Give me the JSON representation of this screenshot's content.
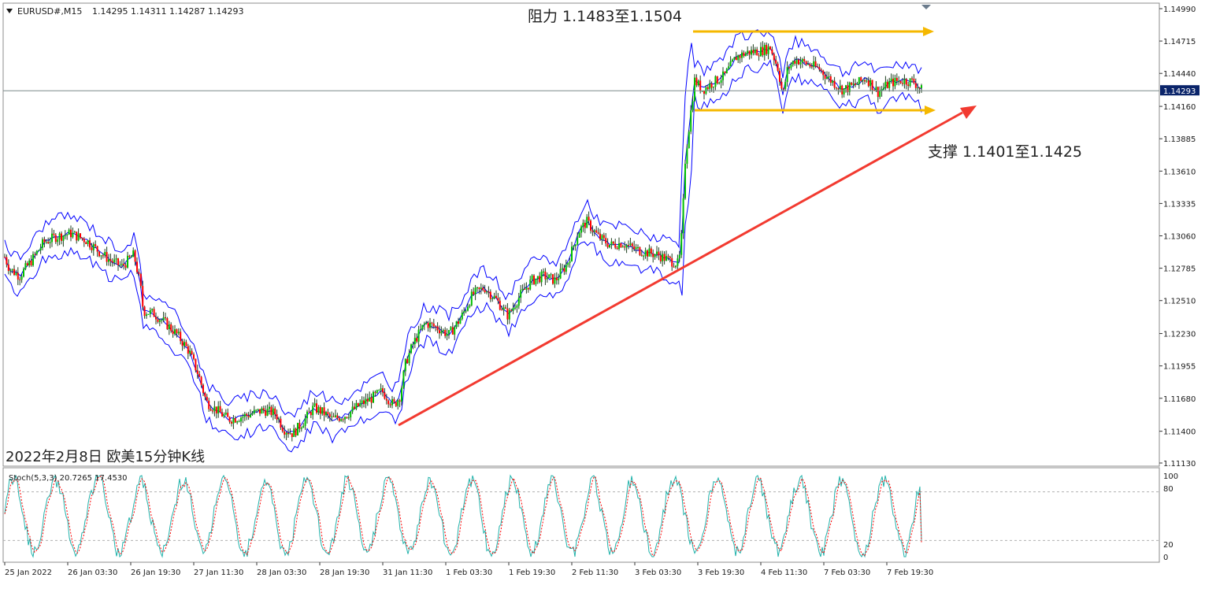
{
  "header": {
    "symbol_label": "EURUSD#,M15",
    "ohlc_label": "1.14295 1.14311 1.14287 1.14293"
  },
  "annotations": {
    "resistance": "阻力 1.1483至1.1504",
    "support": "支撑 1.1401至1.1425",
    "caption": "2022年2月8日 欧美15分钟K线"
  },
  "stoch": {
    "label": "Stoch(5,3,3) 20.7265 17.4530",
    "levels": [
      "100",
      "80",
      "20",
      "0"
    ]
  },
  "colors": {
    "band": "#0000ff",
    "bull_candle": "#00c000",
    "bear_candle": "#ff0000",
    "wick": "#1f3f1f",
    "trend_arrow": "#f23a30",
    "range_arrow": "#f5b800",
    "stoch_main": "#20b2aa",
    "stoch_signal": "#ff0000",
    "current_price_bg": "#0a246a"
  },
  "chart_data": [
    {
      "type": "candlestick",
      "title": "EURUSD#,M15",
      "current_price": 1.14293,
      "current_price_label": "1.14293",
      "y_ticks": [
        "1.14990",
        "1.14715",
        "1.14440",
        "1.14160",
        "1.13885",
        "1.13610",
        "1.13335",
        "1.13060",
        "1.12785",
        "1.12510",
        "1.12230",
        "1.11955",
        "1.11680",
        "1.11400",
        "1.11130"
      ],
      "y_tick_values": [
        1.1499,
        1.14715,
        1.1444,
        1.1416,
        1.13885,
        1.1361,
        1.13335,
        1.1306,
        1.12785,
        1.1251,
        1.1223,
        1.11955,
        1.1168,
        1.114,
        1.1113
      ],
      "ylim": [
        1.1111,
        1.1501
      ],
      "x_ticks": [
        "25 Jan 2022",
        "26 Jan 03:30",
        "26 Jan 19:30",
        "27 Jan 11:30",
        "28 Jan 03:30",
        "28 Jan 19:30",
        "31 Jan 11:30",
        "1 Feb 03:30",
        "1 Feb 19:30",
        "2 Feb 11:30",
        "3 Feb 03:30",
        "3 Feb 19:30",
        "4 Feb 11:30",
        "7 Feb 03:30",
        "7 Feb 19:30"
      ],
      "close_path": [
        [
          0,
          1.1298
        ],
        [
          12,
          1.1278
        ],
        [
          25,
          1.1272
        ],
        [
          40,
          1.1285
        ],
        [
          55,
          1.13
        ],
        [
          70,
          1.1305
        ],
        [
          90,
          1.1308
        ],
        [
          110,
          1.1302
        ],
        [
          125,
          1.1293
        ],
        [
          140,
          1.1285
        ],
        [
          155,
          1.128
        ],
        [
          170,
          1.129
        ],
        [
          178,
          1.1265
        ],
        [
          182,
          1.1242
        ],
        [
          195,
          1.124
        ],
        [
          210,
          1.1232
        ],
        [
          225,
          1.1222
        ],
        [
          240,
          1.1208
        ],
        [
          252,
          1.1188
        ],
        [
          262,
          1.1165
        ],
        [
          275,
          1.1158
        ],
        [
          290,
          1.115
        ],
        [
          305,
          1.1152
        ],
        [
          320,
          1.1155
        ],
        [
          335,
          1.1158
        ],
        [
          350,
          1.1155
        ],
        [
          360,
          1.1142
        ],
        [
          372,
          1.1138
        ],
        [
          385,
          1.1148
        ],
        [
          398,
          1.116
        ],
        [
          410,
          1.1156
        ],
        [
          422,
          1.115
        ],
        [
          440,
          1.1154
        ],
        [
          458,
          1.1163
        ],
        [
          472,
          1.1168
        ],
        [
          485,
          1.1174
        ],
        [
          500,
          1.1162
        ],
        [
          508,
          1.117
        ],
        [
          515,
          1.1198
        ],
        [
          525,
          1.1215
        ],
        [
          540,
          1.1232
        ],
        [
          555,
          1.1228
        ],
        [
          570,
          1.1222
        ],
        [
          585,
          1.1236
        ],
        [
          600,
          1.1256
        ],
        [
          615,
          1.1262
        ],
        [
          630,
          1.1252
        ],
        [
          645,
          1.1238
        ],
        [
          660,
          1.1255
        ],
        [
          675,
          1.1268
        ],
        [
          690,
          1.1272
        ],
        [
          705,
          1.1268
        ],
        [
          720,
          1.1282
        ],
        [
          735,
          1.131
        ],
        [
          745,
          1.1318
        ],
        [
          760,
          1.1305
        ],
        [
          775,
          1.1298
        ],
        [
          790,
          1.13
        ],
        [
          805,
          1.1295
        ],
        [
          820,
          1.1292
        ],
        [
          835,
          1.129
        ],
        [
          850,
          1.1285
        ],
        [
          862,
          1.1282
        ],
        [
          866,
          1.131
        ],
        [
          870,
          1.137
        ],
        [
          876,
          1.1405
        ],
        [
          882,
          1.1438
        ],
        [
          892,
          1.143
        ],
        [
          905,
          1.1436
        ],
        [
          920,
          1.1442
        ],
        [
          935,
          1.1458
        ],
        [
          950,
          1.1462
        ],
        [
          965,
          1.1463
        ],
        [
          978,
          1.1466
        ],
        [
          988,
          1.1448
        ],
        [
          994,
          1.1425
        ],
        [
          1000,
          1.1448
        ],
        [
          1010,
          1.1456
        ],
        [
          1025,
          1.1452
        ],
        [
          1040,
          1.1448
        ],
        [
          1055,
          1.1438
        ],
        [
          1070,
          1.143
        ],
        [
          1085,
          1.1434
        ],
        [
          1100,
          1.144
        ],
        [
          1115,
          1.1428
        ],
        [
          1130,
          1.1436
        ],
        [
          1145,
          1.1438
        ],
        [
          1160,
          1.1437
        ],
        [
          1170,
          1.143
        ]
      ]
    },
    {
      "type": "line",
      "title": "Stoch(5,3,3)",
      "series": [
        {
          "name": "Stoch(5,3,3) main",
          "last_value": 20.7265
        },
        {
          "name": "Stoch(5,3,3) signal",
          "last_value": 17.453
        }
      ],
      "ylim": [
        0,
        100
      ],
      "levels": [
        100,
        80,
        20,
        0
      ]
    }
  ]
}
